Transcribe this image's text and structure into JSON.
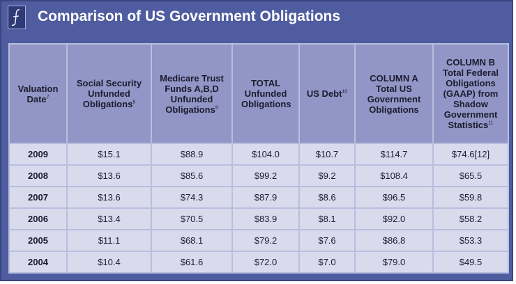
{
  "title": "Comparison of US Government Obligations",
  "logo_icon": "script-f-logo-icon",
  "headers": [
    {
      "text": "Valuation Date",
      "sup": "7"
    },
    {
      "text": "Social Security Unfunded Obligations",
      "sup": "8"
    },
    {
      "text": "Medicare Trust Funds A,B,D Unfunded Obligations",
      "sup": "9"
    },
    {
      "text": "TOTAL Unfunded Obligations",
      "sup": ""
    },
    {
      "text": "US Debt",
      "sup": "10"
    },
    {
      "text": "COLUMN A Total US Government Obligations",
      "sup": ""
    },
    {
      "text": "COLUMN B Total Federal Obligations (GAAP) from Shadow Government Statistics",
      "sup": "11"
    }
  ],
  "rows": [
    [
      "2009",
      "$15.1",
      "$88.9",
      "$104.0",
      "$10.7",
      "$114.7",
      "$74.6[12]"
    ],
    [
      "2008",
      "$13.6",
      "$85.6",
      "$99.2",
      "$9.2",
      "$108.4",
      "$65.5"
    ],
    [
      "2007",
      "$13.6",
      "$74.3",
      "$87.9",
      "$8.6",
      "$96.5",
      "$59.8"
    ],
    [
      "2006",
      "$13.4",
      "$70.5",
      "$83.9",
      "$8.1",
      "$92.0",
      "$58.2"
    ],
    [
      "2005",
      "$11.1",
      "$68.1",
      "$79.2",
      "$7.6",
      "$86.8",
      "$53.3"
    ],
    [
      "2004",
      "$10.4",
      "$61.6",
      "$72.0",
      "$7.0",
      "$79.0",
      "$49.5"
    ]
  ],
  "colors": {
    "panel": "#4f5c9f",
    "header_cell": "#9196c6",
    "body_cell": "#d9dbed"
  }
}
